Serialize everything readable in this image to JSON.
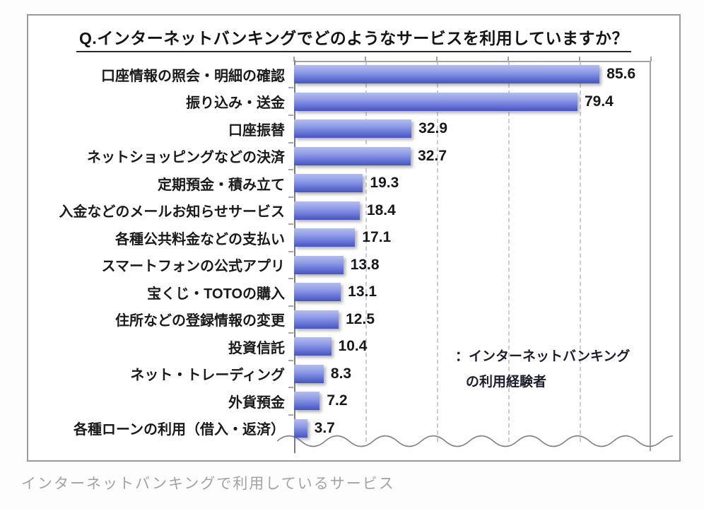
{
  "chart": {
    "title": "Q.インターネットバンキングでどのようなサービスを利用していますか？",
    "legend": {
      "line1": "：インターネットバンキング",
      "line2": "の利用経験者"
    }
  },
  "caption": "インターネットバンキングで利用しているサービス",
  "chart_data": {
    "type": "bar",
    "orientation": "horizontal",
    "title": "Q.インターネットバンキングでどのようなサービスを利用していますか？",
    "categories": [
      "口座情報の照会・明細の確認",
      "振り込み・送金",
      "口座振替",
      "ネットショッピングなどの決済",
      "定期預金・積み立て",
      "入金などのメールお知らせサービス",
      "各種公共料金などの支払い",
      "スマートフォンの公式アプリ",
      "宝くじ・TOTOの購入",
      "住所などの登録情報の変更",
      "投資信託",
      "ネット・トレーディング",
      "外貨預金",
      "各種ローンの利用（借入・返済）"
    ],
    "values": [
      85.6,
      79.4,
      32.9,
      32.7,
      19.3,
      18.4,
      17.1,
      13.8,
      13.1,
      12.5,
      10.4,
      8.3,
      7.2,
      3.7
    ],
    "unit": "%",
    "xlim": [
      0,
      100
    ],
    "gridline_interval": 20,
    "grid_style": "vertical-dashed",
    "legend": "インターネットバンキングの利用経験者",
    "bar_gradient_top": "#b3bcf1",
    "bar_gradient_bottom": "#4854c0",
    "axis_color": "#7d7d7d",
    "value_labels_shown": true,
    "bottom_axis_style": "wavy-break-line"
  }
}
